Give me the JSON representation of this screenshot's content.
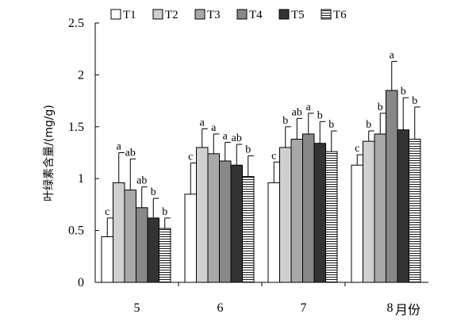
{
  "chart_data": {
    "type": "bar",
    "title": "",
    "xlabel": "月份",
    "ylabel": "叶绿素含量/(mg/g)",
    "ylim": [
      0,
      2.5
    ],
    "yticks": [
      0,
      0.5,
      1,
      1.5,
      2,
      2.5
    ],
    "ytick_labels": [
      "0",
      "0.5",
      "1",
      "1.5",
      "2",
      "2.5"
    ],
    "categories": [
      "5",
      "6",
      "7",
      "8"
    ],
    "legend_position": "top",
    "grid": false,
    "series": [
      {
        "name": "T1",
        "fill": "#ffffff",
        "pattern": "none",
        "values": [
          0.44,
          0.85,
          0.96,
          1.13
        ],
        "errors": [
          0.18,
          0.3,
          0.2,
          0.1
        ],
        "sig": [
          "c",
          "c",
          "c",
          "c"
        ]
      },
      {
        "name": "T2",
        "fill": "#d0d0d0",
        "pattern": "none",
        "values": [
          0.96,
          1.3,
          1.3,
          1.36
        ],
        "errors": [
          0.29,
          0.18,
          0.2,
          0.1
        ],
        "sig": [
          "a",
          "a",
          "b",
          "b"
        ]
      },
      {
        "name": "T3",
        "fill": "#a8a8a8",
        "pattern": "none",
        "values": [
          0.89,
          1.24,
          1.38,
          1.43
        ],
        "errors": [
          0.3,
          0.19,
          0.2,
          0.2
        ],
        "sig": [
          "ab",
          "a",
          "ab",
          "b"
        ]
      },
      {
        "name": "T4",
        "fill": "#888888",
        "pattern": "none",
        "values": [
          0.72,
          1.17,
          1.43,
          1.85
        ],
        "errors": [
          0.2,
          0.18,
          0.2,
          0.28
        ],
        "sig": [
          "ab",
          "a",
          "a",
          "a"
        ]
      },
      {
        "name": "T5",
        "fill": "#333333",
        "pattern": "none",
        "values": [
          0.62,
          1.13,
          1.34,
          1.47
        ],
        "errors": [
          0.19,
          0.2,
          0.21,
          0.31
        ],
        "sig": [
          "b",
          "ab",
          "b",
          "b"
        ]
      },
      {
        "name": "T6",
        "fill": "#ffffff",
        "pattern": "hlines",
        "values": [
          0.52,
          1.02,
          1.26,
          1.38
        ],
        "errors": [
          0.1,
          0.2,
          0.2,
          0.31
        ],
        "sig": [
          "b",
          "b",
          "b",
          "b"
        ]
      }
    ]
  }
}
